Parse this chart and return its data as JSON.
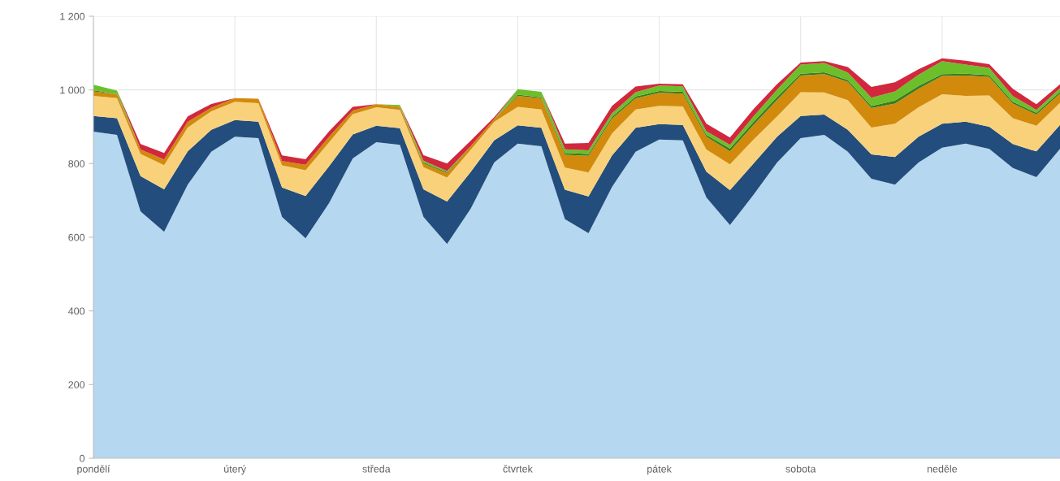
{
  "chart_data": {
    "type": "area",
    "stacked": true,
    "categories": [
      "pondělí",
      null,
      null,
      null,
      null,
      null,
      "úterý",
      null,
      null,
      null,
      null,
      null,
      "středa",
      null,
      null,
      null,
      null,
      null,
      "čtvrtek",
      null,
      null,
      null,
      null,
      null,
      "pátek",
      null,
      null,
      null,
      null,
      null,
      "sobota",
      null,
      null,
      null,
      null,
      null,
      "neděle",
      null,
      null,
      null,
      null,
      null
    ],
    "series": [
      {
        "color": "#b5d7f0",
        "values": [
          887,
          878,
          670,
          615,
          743,
          832,
          873,
          869,
          655,
          597,
          693,
          814,
          858,
          851,
          655,
          582,
          677,
          803,
          854,
          847,
          649,
          611,
          737,
          832,
          865,
          863,
          708,
          633,
          715,
          803,
          869,
          878,
          832,
          759,
          743,
          803,
          843,
          854,
          840,
          788,
          763,
          840
        ]
      },
      {
        "color": "#234d7c",
        "values": [
          42,
          45,
          96,
          115,
          90,
          60,
          45,
          45,
          80,
          115,
          100,
          65,
          45,
          45,
          75,
          115,
          100,
          60,
          50,
          50,
          80,
          100,
          85,
          65,
          42,
          42,
          70,
          95,
          85,
          70,
          60,
          55,
          60,
          66,
          75,
          70,
          65,
          60,
          60,
          65,
          70,
          65
        ]
      },
      {
        "color": "#f8d17a",
        "values": [
          55,
          55,
          60,
          66,
          65,
          50,
          50,
          50,
          60,
          70,
          65,
          55,
          50,
          50,
          60,
          65,
          60,
          50,
          50,
          50,
          60,
          65,
          60,
          50,
          50,
          50,
          60,
          70,
          65,
          55,
          65,
          60,
          80,
          73,
          90,
          80,
          80,
          70,
          85,
          70,
          70,
          60
        ]
      },
      {
        "color": "#d18a0c",
        "values": [
          12,
          10,
          12,
          15,
          15,
          10,
          10,
          12,
          12,
          15,
          15,
          10,
          8,
          8,
          10,
          12,
          10,
          8,
          30,
          30,
          35,
          45,
          40,
          30,
          35,
          35,
          35,
          35,
          40,
          45,
          45,
          50,
          50,
          53,
          55,
          50,
          50,
          55,
          50,
          40,
          30,
          25
        ]
      },
      {
        "color": "#3a7d1e",
        "values": [
          3,
          0,
          0,
          0,
          0,
          0,
          0,
          0,
          0,
          0,
          0,
          0,
          0,
          0,
          3,
          3,
          0,
          0,
          3,
          3,
          5,
          5,
          5,
          5,
          5,
          5,
          5,
          8,
          8,
          8,
          5,
          5,
          5,
          5,
          8,
          8,
          5,
          5,
          5,
          5,
          5,
          5
        ]
      },
      {
        "color": "#6cbf2a",
        "values": [
          15,
          10,
          0,
          0,
          0,
          0,
          0,
          0,
          0,
          0,
          0,
          0,
          0,
          5,
          5,
          3,
          0,
          0,
          15,
          15,
          10,
          10,
          10,
          12,
          15,
          15,
          10,
          10,
          15,
          20,
          25,
          25,
          20,
          23,
          25,
          30,
          35,
          25,
          20,
          15,
          8,
          10
        ]
      },
      {
        "color": "#d1283d",
        "values": [
          0,
          0,
          15,
          18,
          15,
          10,
          0,
          0,
          15,
          15,
          15,
          10,
          0,
          0,
          15,
          20,
          15,
          5,
          0,
          0,
          15,
          20,
          20,
          15,
          5,
          5,
          20,
          20,
          20,
          15,
          5,
          5,
          15,
          29,
          25,
          15,
          8,
          10,
          10,
          20,
          15,
          10
        ]
      }
    ],
    "ylim": [
      0,
      1200
    ],
    "yticks": [
      0,
      200,
      400,
      600,
      800,
      {
        "value": 1000,
        "label": "1 000"
      },
      {
        "value": 1200,
        "label": "1 200"
      }
    ],
    "grid": true
  }
}
